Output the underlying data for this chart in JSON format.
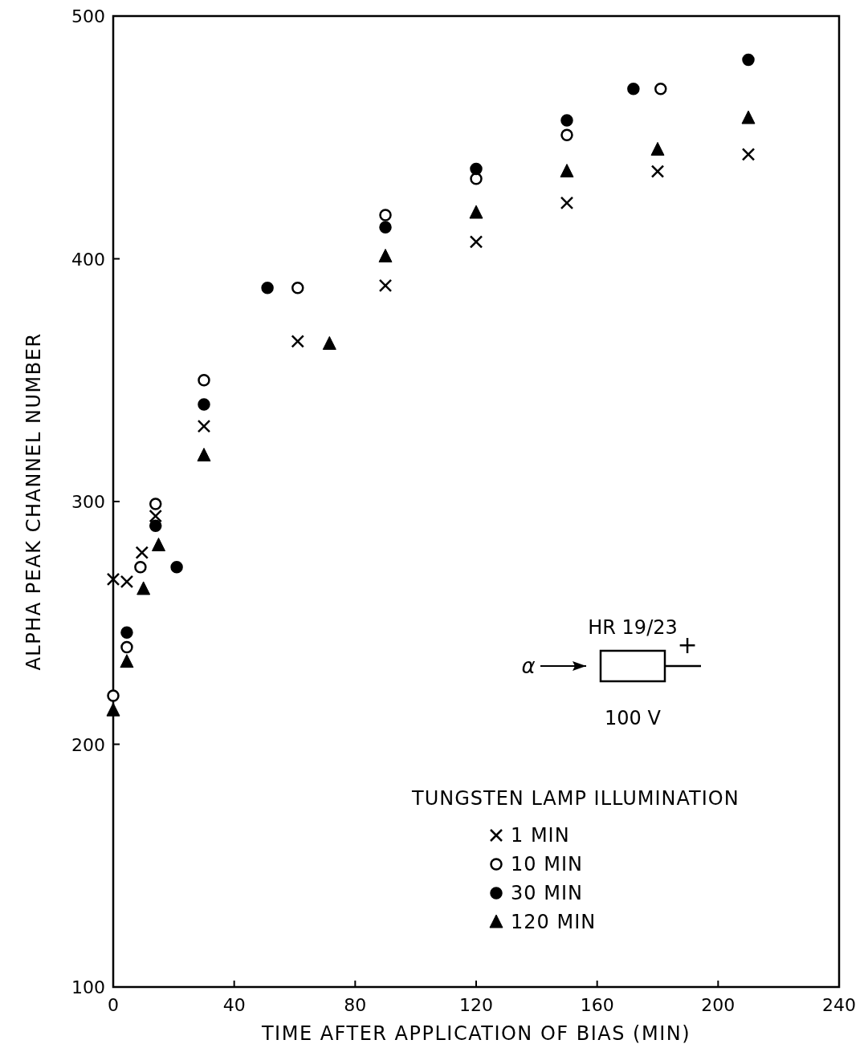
{
  "chart_data": {
    "type": "scatter",
    "xlabel": "TIME AFTER APPLICATION OF BIAS (MIN)",
    "ylabel": "ALPHA PEAK CHANNEL NUMBER",
    "legend_title": "TUNGSTEN LAMP ILLUMINATION",
    "legend": "bottom right",
    "grid": false,
    "xlim": [
      0,
      240
    ],
    "xticks": [
      0,
      40,
      80,
      120,
      160,
      200,
      240
    ],
    "ylim": [
      100,
      500
    ],
    "yticks": [
      100,
      200,
      300,
      400,
      500
    ],
    "annotations": [
      "HR 19/23",
      "α",
      "+",
      "100 V"
    ],
    "series": [
      {
        "name": "1 MIN",
        "marker": "cross",
        "color": "#000000",
        "x": [
          0,
          4.5,
          9.5,
          14,
          30,
          61,
          90,
          120,
          150,
          180,
          210
        ],
        "values": [
          268,
          267,
          279,
          294,
          331,
          366,
          389,
          407,
          423,
          436,
          443
        ]
      },
      {
        "name": "10 MIN",
        "marker": "circle",
        "color": "#ffffff",
        "x": [
          0,
          4.5,
          9,
          14,
          30,
          61,
          90,
          120,
          150,
          181
        ],
        "values": [
          220,
          240,
          273,
          299,
          350,
          388,
          418,
          433,
          451,
          470
        ]
      },
      {
        "name": "30 MIN",
        "marker": "circle",
        "color": "#000000",
        "x": [
          4.5,
          21,
          14,
          30,
          51,
          90,
          120,
          150,
          172,
          210
        ],
        "values": [
          246,
          273,
          290,
          340,
          388,
          413,
          437,
          457,
          470,
          482
        ]
      },
      {
        "name": "120 MIN",
        "marker": "triangle",
        "color": "#000000",
        "x": [
          0,
          4.5,
          10,
          15,
          30,
          71.5,
          90,
          120,
          150,
          180,
          210
        ],
        "values": [
          214,
          234,
          264,
          282,
          319,
          365,
          401,
          419,
          436,
          445,
          458
        ]
      }
    ]
  }
}
